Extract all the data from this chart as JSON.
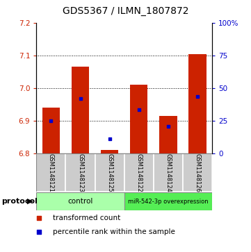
{
  "title": "GDS5367 / ILMN_1807872",
  "samples": [
    "GSM1148121",
    "GSM1148123",
    "GSM1148125",
    "GSM1148122",
    "GSM1148124",
    "GSM1148126"
  ],
  "bar_bottom": 6.8,
  "bar_tops": [
    6.94,
    7.065,
    6.812,
    7.01,
    6.915,
    7.103
  ],
  "blue_positions": [
    6.9,
    6.968,
    6.845,
    6.935,
    6.884,
    6.975
  ],
  "ylim": [
    6.8,
    7.2
  ],
  "yticks_left": [
    6.8,
    6.9,
    7.0,
    7.1,
    7.2
  ],
  "yticks_right_vals": [
    0,
    25,
    50,
    75,
    100
  ],
  "yticks_right_labels": [
    "0",
    "25",
    "50",
    "75",
    "100%"
  ],
  "bar_color": "#CC2200",
  "blue_color": "#0000CC",
  "bar_width": 0.6,
  "protocol_label": "protocol",
  "legend_red_label": "transformed count",
  "legend_blue_label": "percentile rank within the sample",
  "grid_yticks": [
    6.9,
    7.0,
    7.1
  ],
  "title_fontsize": 10,
  "right_axis_color": "#0000CC",
  "left_axis_color": "#CC2200",
  "sample_bg": "#CCCCCC",
  "control_bg": "#AAFFAA",
  "mir_bg": "#55EE55",
  "control_label": "control",
  "mir_label": "miR-542-3p overexpression"
}
